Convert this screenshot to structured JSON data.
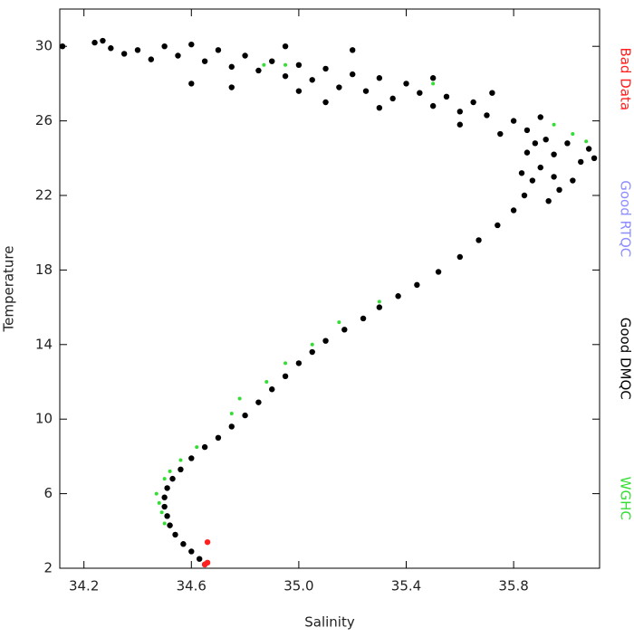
{
  "chart_data": {
    "type": "scatter",
    "x_label": "Salinity",
    "y_label": "Temperature",
    "xlim": [
      34.11,
      36.12
    ],
    "ylim": [
      2,
      32
    ],
    "xticks": [
      34.2,
      34.6,
      {
        "value": 35,
        "label": "35.0"
      },
      35.4,
      35.8
    ],
    "yticks": [
      2,
      6,
      10,
      14,
      18,
      22,
      26,
      30
    ],
    "legend": "right",
    "series": [
      {
        "name": "Bad Data",
        "color": "#ff2020",
        "x": [
          34.66,
          34.66,
          34.65
        ],
        "y": [
          3.4,
          2.3,
          2.2
        ]
      },
      {
        "name": "Good RTQC",
        "color": "#8c8cff",
        "x": [],
        "y": []
      },
      {
        "name": "Good DMQC",
        "color": "#000000",
        "x": [
          34.65,
          34.63,
          34.6,
          34.57,
          34.54,
          34.52,
          34.51,
          34.5,
          34.5,
          34.51,
          34.53,
          34.56,
          34.6,
          34.65,
          34.7,
          34.75,
          34.8,
          34.85,
          34.9,
          34.95,
          35.0,
          35.05,
          35.1,
          35.17,
          35.24,
          35.3,
          35.37,
          35.44,
          35.52,
          35.6,
          35.67,
          35.74,
          35.8,
          35.84,
          35.87,
          35.9,
          35.95,
          36.0,
          36.05,
          35.92,
          35.85,
          35.8,
          35.7,
          35.65,
          35.6,
          35.55,
          35.5,
          35.45,
          35.4,
          35.35,
          35.3,
          35.25,
          35.2,
          35.15,
          35.1,
          35.05,
          35.0,
          34.95,
          34.9,
          34.85,
          34.8,
          34.75,
          34.7,
          34.65,
          34.6,
          34.55,
          34.5,
          34.45,
          34.4,
          34.35,
          34.3,
          34.24,
          34.27,
          34.12,
          36.08,
          36.02,
          35.97,
          35.93,
          35.9,
          35.75,
          35.6,
          35.72,
          35.5,
          35.3,
          35.2,
          34.95,
          34.6,
          34.75,
          35.1,
          35.0,
          36.1,
          35.95,
          35.85,
          35.83,
          35.88
        ],
        "y": [
          2.2,
          2.5,
          2.9,
          3.3,
          3.8,
          4.3,
          4.8,
          5.3,
          5.8,
          6.3,
          6.8,
          7.3,
          7.9,
          8.5,
          9.0,
          9.6,
          10.2,
          10.9,
          11.6,
          12.3,
          13.0,
          13.6,
          14.2,
          14.8,
          15.4,
          16.0,
          16.6,
          17.2,
          17.9,
          18.7,
          19.6,
          20.4,
          21.2,
          22.0,
          22.8,
          23.5,
          24.2,
          24.8,
          23.8,
          25.0,
          25.5,
          26.0,
          26.3,
          27.0,
          26.5,
          27.3,
          26.8,
          27.5,
          28.0,
          27.2,
          28.3,
          27.6,
          28.5,
          27.8,
          28.8,
          28.2,
          29.0,
          28.4,
          29.2,
          28.7,
          29.5,
          28.9,
          29.8,
          29.2,
          30.1,
          29.5,
          30.0,
          29.3,
          29.8,
          29.6,
          29.9,
          30.2,
          30.3,
          30.0,
          24.5,
          22.8,
          22.3,
          21.7,
          26.2,
          25.3,
          25.8,
          27.5,
          28.3,
          26.7,
          29.8,
          30.0,
          28.0,
          27.8,
          27.0,
          27.6,
          24.0,
          23.0,
          24.3,
          23.2,
          24.8
        ]
      },
      {
        "name": "WGHC",
        "color": "#33dd33",
        "x": [
          34.48,
          34.47,
          34.49,
          34.5,
          34.5,
          34.52,
          34.56,
          34.62,
          34.75,
          34.78,
          34.88,
          34.95,
          35.05,
          35.15,
          35.3,
          34.87,
          34.95,
          35.5,
          35.95,
          36.02,
          36.07
        ],
        "y": [
          5.5,
          6.0,
          5.0,
          4.4,
          6.8,
          7.2,
          7.8,
          8.5,
          10.3,
          11.1,
          12.0,
          13.0,
          14.0,
          15.2,
          16.3,
          29.0,
          29.0,
          28.0,
          25.8,
          25.3,
          24.9
        ]
      }
    ]
  }
}
